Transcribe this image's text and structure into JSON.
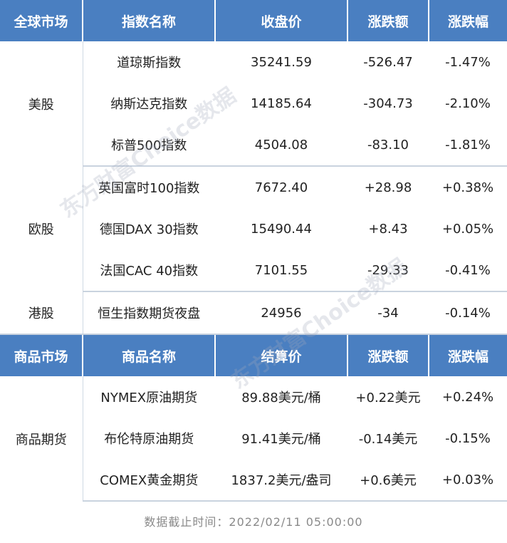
{
  "index_header": [
    "全球市场",
    "指数名称",
    "收盘价",
    "涨跌额",
    "涨跌幅"
  ],
  "index_groups": [
    {
      "market": "美股",
      "rows": [
        [
          "道琼斯指数",
          "35241.59",
          "-526.47",
          "-1.47%"
        ],
        [
          "纳斯达克指数",
          "14185.64",
          "-304.73",
          "-2.10%"
        ],
        [
          "标普500指数",
          "4504.08",
          "-83.10",
          "-1.81%"
        ]
      ]
    },
    {
      "market": "欧股",
      "rows": [
        [
          "英国富时100指数",
          "7672.40",
          "+28.98",
          "+0.38%"
        ],
        [
          "德国DAX 30指数",
          "15490.44",
          "+8.43",
          "+0.05%"
        ],
        [
          "法国CAC 40指数",
          "7101.55",
          "-29.33",
          "-0.41%"
        ]
      ]
    },
    {
      "market": "港股",
      "rows": [
        [
          "恒生指数期货夜盘",
          "24956",
          "-34",
          "-0.14%"
        ]
      ]
    }
  ],
  "commodity_header": [
    "商品市场",
    "商品名称",
    "结算价",
    "涨跌额",
    "涨跌幅"
  ],
  "commodity_groups": [
    {
      "market": "商品期货",
      "rows": [
        [
          "NYMEX原油期货",
          "89.88美元/桶",
          "+0.22美元",
          "+0.24%"
        ],
        [
          "布伦特原油期货",
          "91.41美元/桶",
          "-0.14美元",
          "-0.15%"
        ],
        [
          "COMEX黄金期货",
          "1837.2美元/盎司",
          "+0.6美元",
          "+0.03%"
        ]
      ]
    }
  ],
  "footer": "数据截止时间：2022/02/11 05:00:00",
  "watermark": "东方财富Choice数据",
  "colors": {
    "header_bg": "#4a7fc1",
    "header_text": "#ffffff"
  }
}
